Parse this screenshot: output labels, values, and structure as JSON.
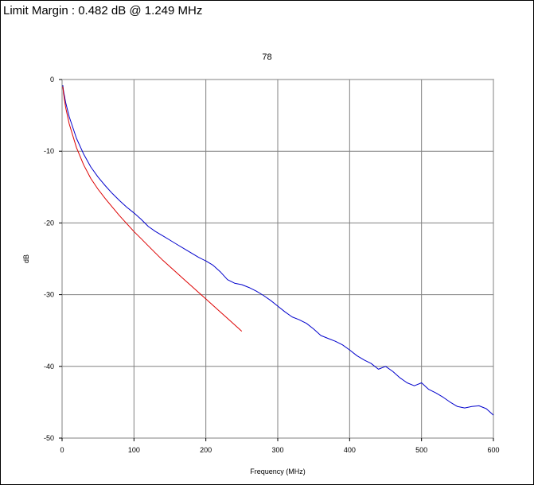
{
  "header": {
    "limit_margin_text": "Limit Margin : 0.482 dB @ 1.249 MHz"
  },
  "chart_data": {
    "type": "line",
    "title": "78",
    "xlabel": "Frequency (MHz)",
    "ylabel": "dB",
    "xlim": [
      0,
      600
    ],
    "ylim": [
      -50,
      0
    ],
    "xticks": [
      0,
      100,
      200,
      300,
      400,
      500,
      600
    ],
    "yticks": [
      0,
      -10,
      -20,
      -30,
      -40,
      -50
    ],
    "grid": true,
    "series": [
      {
        "color": "#0000cc",
        "x": [
          1,
          2,
          5,
          10,
          20,
          30,
          40,
          50,
          60,
          70,
          80,
          90,
          100,
          110,
          120,
          130,
          140,
          150,
          160,
          170,
          180,
          190,
          200,
          210,
          220,
          230,
          240,
          250,
          260,
          270,
          280,
          290,
          300,
          310,
          320,
          330,
          340,
          350,
          360,
          370,
          380,
          390,
          400,
          410,
          420,
          430,
          440,
          450,
          460,
          470,
          480,
          490,
          500,
          510,
          520,
          530,
          540,
          550,
          560,
          570,
          580,
          590,
          600
        ],
        "y": [
          -0.8,
          -1.6,
          -3.2,
          -5.2,
          -8.2,
          -10.4,
          -12.2,
          -13.6,
          -14.8,
          -15.9,
          -16.9,
          -17.8,
          -18.6,
          -19.5,
          -20.5,
          -21.2,
          -21.8,
          -22.4,
          -23.0,
          -23.6,
          -24.2,
          -24.8,
          -25.3,
          -25.9,
          -26.8,
          -27.9,
          -28.4,
          -28.6,
          -29.0,
          -29.5,
          -30.1,
          -30.8,
          -31.6,
          -32.4,
          -33.1,
          -33.5,
          -34.0,
          -34.8,
          -35.7,
          -36.1,
          -36.5,
          -37.0,
          -37.7,
          -38.5,
          -39.1,
          -39.6,
          -40.4,
          -40.0,
          -40.7,
          -41.6,
          -42.3,
          -42.7,
          -42.3,
          -43.2,
          -43.7,
          -44.3,
          -45.0,
          -45.6,
          -45.8,
          -45.6,
          -45.5,
          -45.9,
          -46.8
        ]
      },
      {
        "color": "#dd0000",
        "x": [
          1,
          2,
          5,
          10,
          20,
          30,
          40,
          50,
          60,
          70,
          80,
          90,
          100,
          110,
          120,
          130,
          140,
          150,
          160,
          170,
          180,
          190,
          200,
          210,
          220,
          230,
          240,
          250
        ],
        "y": [
          -1.0,
          -1.9,
          -3.9,
          -6.2,
          -9.5,
          -11.9,
          -13.8,
          -15.3,
          -16.6,
          -17.8,
          -19.0,
          -20.1,
          -21.2,
          -22.2,
          -23.2,
          -24.2,
          -25.2,
          -26.1,
          -27.0,
          -27.9,
          -28.8,
          -29.7,
          -30.6,
          -31.5,
          -32.4,
          -33.3,
          -34.2,
          -35.1
        ]
      }
    ]
  }
}
